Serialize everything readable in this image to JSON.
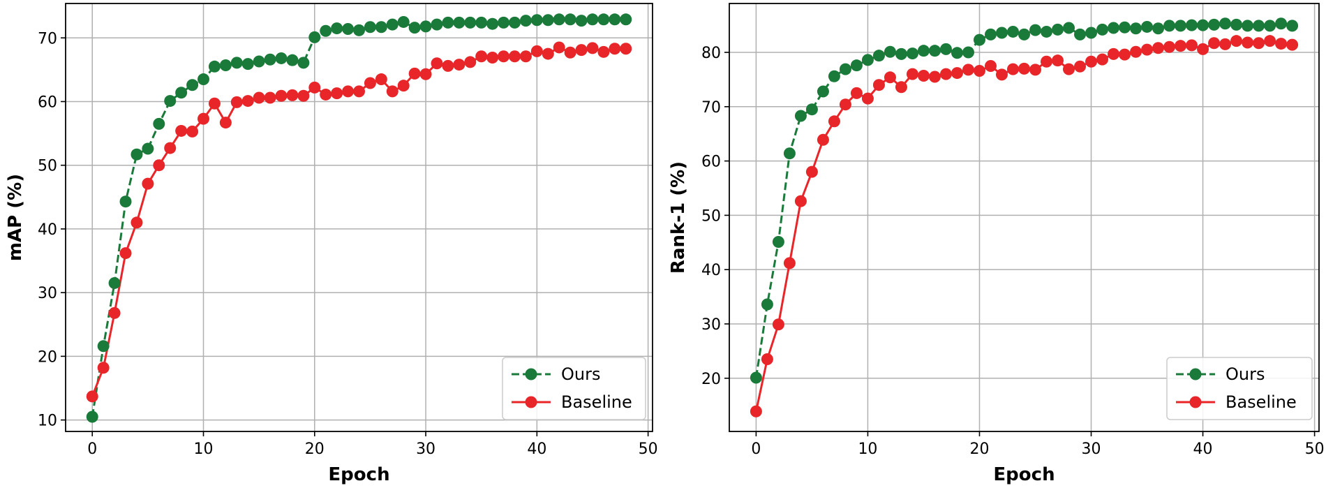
{
  "chart_data": [
    {
      "type": "line",
      "title": "",
      "xlabel": "Epoch",
      "ylabel": "mAP (%)",
      "xlim": [
        -2.4,
        50.4
      ],
      "ylim": [
        8.2,
        75.4
      ],
      "xticks": [
        0,
        10,
        20,
        30,
        40,
        50
      ],
      "yticks": [
        10,
        20,
        30,
        40,
        50,
        60,
        70
      ],
      "grid": true,
      "legend_position": "bottom-right",
      "series": [
        {
          "name": "Ours",
          "color": "#1a7a3a",
          "linestyle": "dashed",
          "marker": "circle",
          "x": [
            0,
            1,
            2,
            3,
            4,
            5,
            6,
            7,
            8,
            9,
            10,
            11,
            12,
            13,
            14,
            15,
            16,
            17,
            18,
            19,
            20,
            21,
            22,
            23,
            24,
            25,
            26,
            27,
            28,
            29,
            30,
            31,
            32,
            33,
            34,
            35,
            36,
            37,
            38,
            39,
            40,
            41,
            42,
            43,
            44,
            45,
            46,
            47,
            48
          ],
          "values": [
            10.5,
            21.6,
            31.5,
            44.3,
            51.7,
            52.6,
            56.5,
            60.1,
            61.4,
            62.6,
            63.5,
            65.5,
            65.7,
            66.1,
            65.9,
            66.3,
            66.6,
            66.8,
            66.5,
            66.1,
            70.1,
            71.1,
            71.5,
            71.4,
            71.2,
            71.7,
            71.7,
            72.1,
            72.5,
            71.6,
            71.8,
            72.1,
            72.4,
            72.4,
            72.4,
            72.4,
            72.2,
            72.4,
            72.4,
            72.7,
            72.8,
            72.8,
            72.9,
            72.9,
            72.7,
            72.9,
            72.9,
            72.9,
            72.9
          ]
        },
        {
          "name": "Baseline",
          "color": "#e8262a",
          "linestyle": "solid",
          "marker": "circle",
          "x": [
            0,
            1,
            2,
            3,
            4,
            5,
            6,
            7,
            8,
            9,
            10,
            11,
            12,
            13,
            14,
            15,
            16,
            17,
            18,
            19,
            20,
            21,
            22,
            23,
            24,
            25,
            26,
            27,
            28,
            29,
            30,
            31,
            32,
            33,
            34,
            35,
            36,
            37,
            38,
            39,
            40,
            41,
            42,
            43,
            44,
            45,
            46,
            47,
            48
          ],
          "values": [
            13.7,
            18.2,
            26.8,
            36.2,
            41.0,
            47.1,
            50.0,
            52.7,
            55.4,
            55.3,
            57.3,
            59.7,
            56.7,
            59.9,
            60.1,
            60.6,
            60.6,
            60.9,
            61.0,
            60.9,
            62.2,
            61.1,
            61.3,
            61.6,
            61.6,
            62.9,
            63.5,
            61.6,
            62.5,
            64.4,
            64.3,
            66.0,
            65.6,
            65.8,
            66.2,
            67.1,
            66.9,
            67.1,
            67.1,
            67.1,
            67.9,
            67.5,
            68.5,
            67.7,
            68.1,
            68.4,
            67.8,
            68.3,
            68.3
          ]
        }
      ]
    },
    {
      "type": "line",
      "title": "",
      "xlabel": "Epoch",
      "ylabel": "Rank-1 (%)",
      "xlim": [
        -2.4,
        50.4
      ],
      "ylim": [
        10.2,
        89.0
      ],
      "xticks": [
        0,
        10,
        20,
        30,
        40,
        50
      ],
      "yticks": [
        20,
        30,
        40,
        50,
        60,
        70,
        80
      ],
      "grid": true,
      "legend_position": "bottom-right",
      "series": [
        {
          "name": "Ours",
          "color": "#1a7a3a",
          "linestyle": "dashed",
          "marker": "circle",
          "x": [
            0,
            1,
            2,
            3,
            4,
            5,
            6,
            7,
            8,
            9,
            10,
            11,
            12,
            13,
            14,
            15,
            16,
            17,
            18,
            19,
            20,
            21,
            22,
            23,
            24,
            25,
            26,
            27,
            28,
            29,
            30,
            31,
            32,
            33,
            34,
            35,
            36,
            37,
            38,
            39,
            40,
            41,
            42,
            43,
            44,
            45,
            46,
            47,
            48
          ],
          "values": [
            20.1,
            33.6,
            45.1,
            61.4,
            68.3,
            69.5,
            72.8,
            75.6,
            76.9,
            77.6,
            78.6,
            79.4,
            80.1,
            79.7,
            79.8,
            80.3,
            80.3,
            80.6,
            79.9,
            80.0,
            82.3,
            83.3,
            83.6,
            83.8,
            83.3,
            84.1,
            83.8,
            84.2,
            84.5,
            83.3,
            83.6,
            84.2,
            84.5,
            84.6,
            84.4,
            84.7,
            84.4,
            84.9,
            84.9,
            85.0,
            85.0,
            85.1,
            85.3,
            85.1,
            84.9,
            84.9,
            84.9,
            85.3,
            84.9
          ]
        },
        {
          "name": "Baseline",
          "color": "#e8262a",
          "linestyle": "solid",
          "marker": "circle",
          "x": [
            0,
            1,
            2,
            3,
            4,
            5,
            6,
            7,
            8,
            9,
            10,
            11,
            12,
            13,
            14,
            15,
            16,
            17,
            18,
            19,
            20,
            21,
            22,
            23,
            24,
            25,
            26,
            27,
            28,
            29,
            30,
            31,
            32,
            33,
            34,
            35,
            36,
            37,
            38,
            39,
            40,
            41,
            42,
            43,
            44,
            45,
            46,
            47,
            48
          ],
          "values": [
            13.9,
            23.5,
            29.9,
            41.2,
            52.6,
            58.0,
            63.9,
            67.3,
            70.4,
            72.5,
            71.5,
            74.0,
            75.4,
            73.6,
            76.0,
            75.7,
            75.5,
            76.0,
            76.2,
            76.8,
            76.6,
            77.5,
            75.9,
            76.9,
            77.0,
            76.8,
            78.3,
            78.5,
            76.9,
            77.4,
            78.3,
            78.7,
            79.7,
            79.6,
            80.1,
            80.5,
            80.8,
            81.0,
            81.2,
            81.3,
            80.6,
            81.7,
            81.5,
            82.1,
            81.8,
            81.7,
            82.1,
            81.6,
            81.4
          ]
        }
      ]
    }
  ]
}
